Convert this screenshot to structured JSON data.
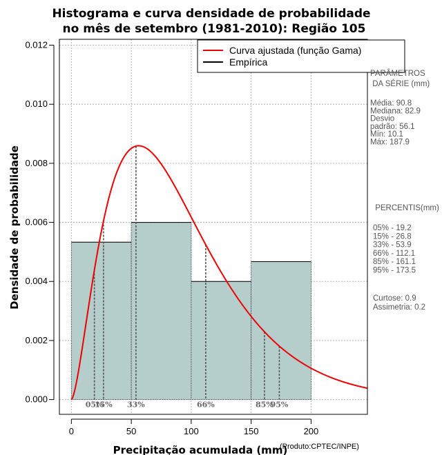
{
  "chart_data": {
    "type": "histogram",
    "title_lines": [
      "Histograma e curva densidade de probabilidade",
      "no mês de setembro (1981-2010): Região 105"
    ],
    "xlabel": "Precipitação acumulada (mm)",
    "credit": "(Produto:CPTEC/INPE)",
    "ylabel": "Densidade de probabilidade",
    "xlim": [
      -10,
      247
    ],
    "ylim": [
      -0.0005,
      0.0122
    ],
    "x_ticks": [
      0,
      50,
      100,
      150,
      200
    ],
    "x_tick_labels": [
      "0",
      "50",
      "100",
      "150",
      "200"
    ],
    "y_ticks": [
      0,
      0.002,
      0.004,
      0.006,
      0.008,
      0.01,
      0.012
    ],
    "y_tick_labels": [
      "0.000",
      "0.002",
      "0.004",
      "0.006",
      "0.008",
      "0.010",
      "0.012"
    ],
    "grid": true,
    "bins": [
      {
        "from": 0,
        "to": 50,
        "density": 0.00533
      },
      {
        "from": 50,
        "to": 100,
        "density": 0.006
      },
      {
        "from": 100,
        "to": 150,
        "density": 0.004
      },
      {
        "from": 150,
        "to": 200,
        "density": 0.00467
      }
    ],
    "gamma_fit": {
      "shape": 2.62,
      "scale": 34.66
    },
    "percentile_markers": [
      {
        "label": "05%",
        "value": 19.2
      },
      {
        "label": "15%",
        "value": 26.8
      },
      {
        "label": "33%",
        "value": 53.9
      },
      {
        "label": "66%",
        "value": 112.1
      },
      {
        "label": "85%",
        "value": 161.1
      },
      {
        "label": "95%",
        "value": 173.5
      }
    ],
    "legend": [
      {
        "label": "Curva ajustada (função Gama)",
        "color": "#ee0000"
      },
      {
        "label": "Empírica",
        "color": "#000000"
      }
    ],
    "legend_position": "top-right"
  },
  "side_panel": {
    "params_title_lines": [
      "PARÂMETROS",
      " DA SÉRIE (mm)"
    ],
    "params_lines": [
      "Média:  90.8",
      "Mediana:  82.9",
      "Desvio",
      "padrão:  56.1",
      "Mín:  10.1",
      "Máx:  187.9"
    ],
    "pct_title": " PERCENTIS(mm)",
    "pct_lines": [
      "05% -  19.2",
      "15% -  26.8",
      "33% -  53.9",
      "66% -  112.1",
      "85% -  161.1",
      "95% -  173.5"
    ],
    "shape_lines": [
      "Curtose:  0.9",
      "Assimetria:  0.2"
    ]
  },
  "colors": {
    "bar_fill": "#b5cecc",
    "curve": "#ee0000",
    "grid": "#b0b0b0",
    "percentile_line": "#555555"
  }
}
